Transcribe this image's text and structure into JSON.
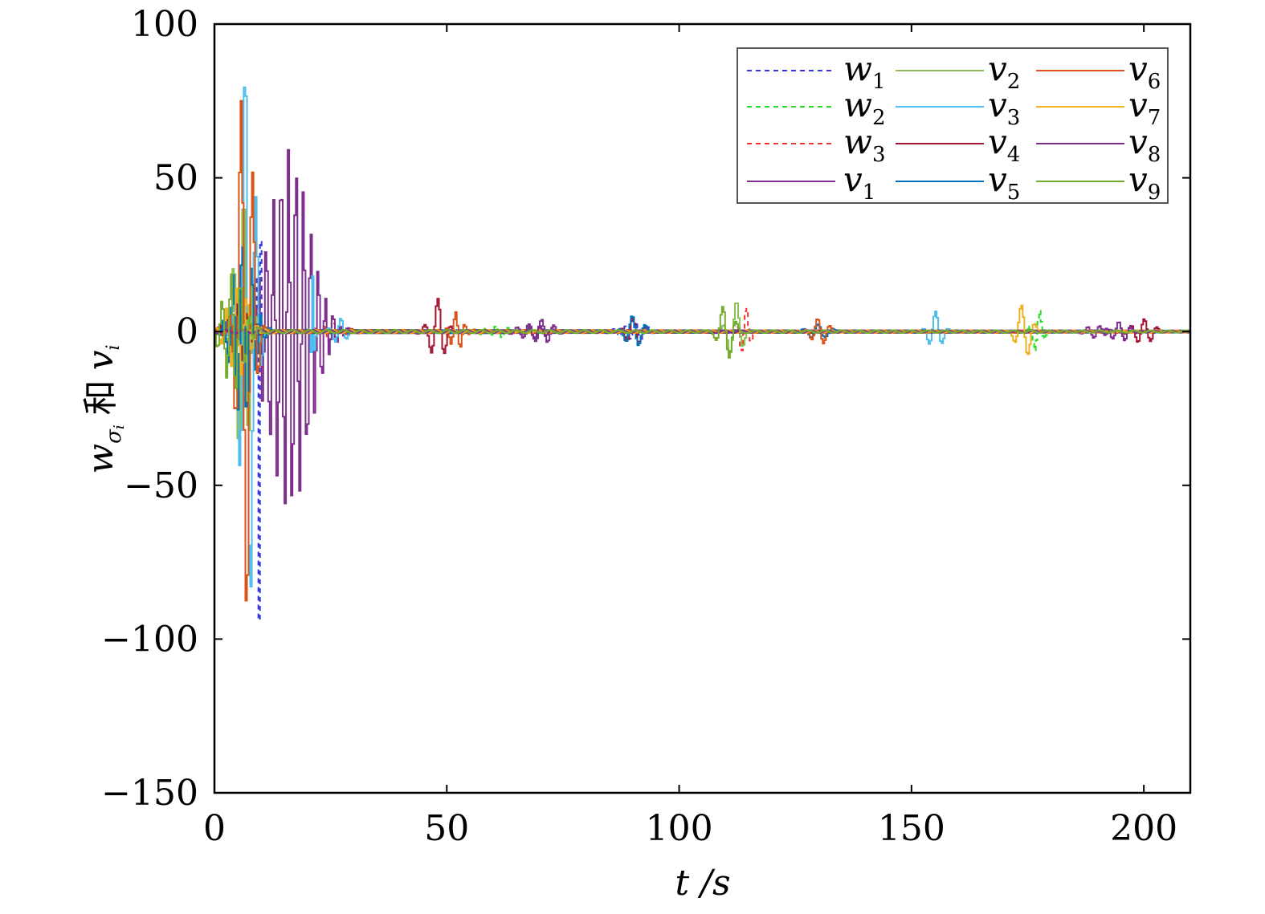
{
  "chart_data": {
    "type": "line",
    "xlabel": "t /s",
    "ylabel_parts": {
      "w": "w",
      "sub": "σ",
      "subsub": "i",
      "and": "和",
      "v": "v",
      "vsub": "i"
    },
    "xlim": [
      0,
      210
    ],
    "ylim": [
      -150,
      100
    ],
    "xticks": [
      0,
      50,
      100,
      150,
      200
    ],
    "xtick_labels": [
      "0",
      "50",
      "100",
      "150",
      "200"
    ],
    "yticks": [
      -150,
      -100,
      -50,
      0,
      50,
      100
    ],
    "ytick_labels": [
      "−150",
      "−100",
      "−50",
      "0",
      "50",
      "100"
    ],
    "grid": false,
    "legend_position": "top-right",
    "sample_step": 0.35,
    "series": [
      {
        "name": "w",
        "sub": "1",
        "color": "#3535e6",
        "dashed": true,
        "bursts": [
          [
            9.4,
            -100,
            0.4,
            1.0
          ],
          [
            90,
            3,
            3,
            2.5
          ]
        ]
      },
      {
        "name": "w",
        "sub": "2",
        "color": "#22dd22",
        "dashed": true,
        "bursts": [
          [
            177,
            7,
            1.5,
            2.2
          ],
          [
            60,
            2,
            3,
            2.5
          ]
        ]
      },
      {
        "name": "w",
        "sub": "3",
        "color": "#ee3333",
        "dashed": true,
        "bursts": [
          [
            114,
            8,
            1.5,
            2.2
          ],
          [
            25,
            3,
            3,
            2.0
          ]
        ]
      },
      {
        "name": "v",
        "sub": "1",
        "color": "#7e2f8e",
        "dashed": false,
        "bursts": [
          [
            16,
            60,
            6,
            1.6
          ],
          [
            70,
            4,
            3,
            2.6
          ],
          [
            190,
            2,
            3,
            2.5
          ]
        ]
      },
      {
        "name": "v",
        "sub": "2",
        "color": "#8cbf55",
        "dashed": false,
        "bursts": [
          [
            6,
            45,
            2.5,
            2.2
          ],
          [
            112,
            10,
            2,
            3.0
          ]
        ]
      },
      {
        "name": "v",
        "sub": "3",
        "color": "#4dbeee",
        "dashed": false,
        "bursts": [
          [
            7,
            95,
            2,
            2.4
          ],
          [
            21,
            18,
            0.5,
            1.0
          ],
          [
            155,
            7,
            2,
            3.0
          ],
          [
            27,
            4,
            2,
            2.5
          ]
        ]
      },
      {
        "name": "v",
        "sub": "4",
        "color": "#a2142f",
        "dashed": false,
        "bursts": [
          [
            48,
            11,
            2.2,
            3.0
          ],
          [
            90,
            4,
            2.5,
            2.6
          ],
          [
            200,
            4,
            3,
            2.8
          ],
          [
            5,
            10,
            3,
            2
          ]
        ]
      },
      {
        "name": "v",
        "sub": "5",
        "color": "#0072bd",
        "dashed": false,
        "bursts": [
          [
            6,
            30,
            3,
            2.0
          ],
          [
            90,
            5,
            2.5,
            2.8
          ],
          [
            130,
            2,
            3,
            3
          ]
        ]
      },
      {
        "name": "v",
        "sub": "6",
        "color": "#d95319",
        "dashed": false,
        "bursts": [
          [
            6.5,
            95,
            2,
            2.6
          ],
          [
            130,
            4,
            2.5,
            2.6
          ],
          [
            52,
            6,
            2,
            2.0
          ]
        ]
      },
      {
        "name": "v",
        "sub": "7",
        "color": "#edb120",
        "dashed": false,
        "bursts": [
          [
            174,
            9,
            2,
            3.0
          ],
          [
            5,
            15,
            3,
            2.2
          ]
        ]
      },
      {
        "name": "v",
        "sub": "8",
        "color": "#7e2f8e",
        "dashed": false,
        "bursts": [
          [
            68,
            3,
            3,
            2.6
          ],
          [
            195,
            3,
            3,
            2.6
          ]
        ]
      },
      {
        "name": "v",
        "sub": "9",
        "color": "#77ac30",
        "dashed": false,
        "bursts": [
          [
            110,
            9,
            2,
            3.0
          ],
          [
            4,
            20,
            3,
            2
          ]
        ]
      }
    ]
  }
}
